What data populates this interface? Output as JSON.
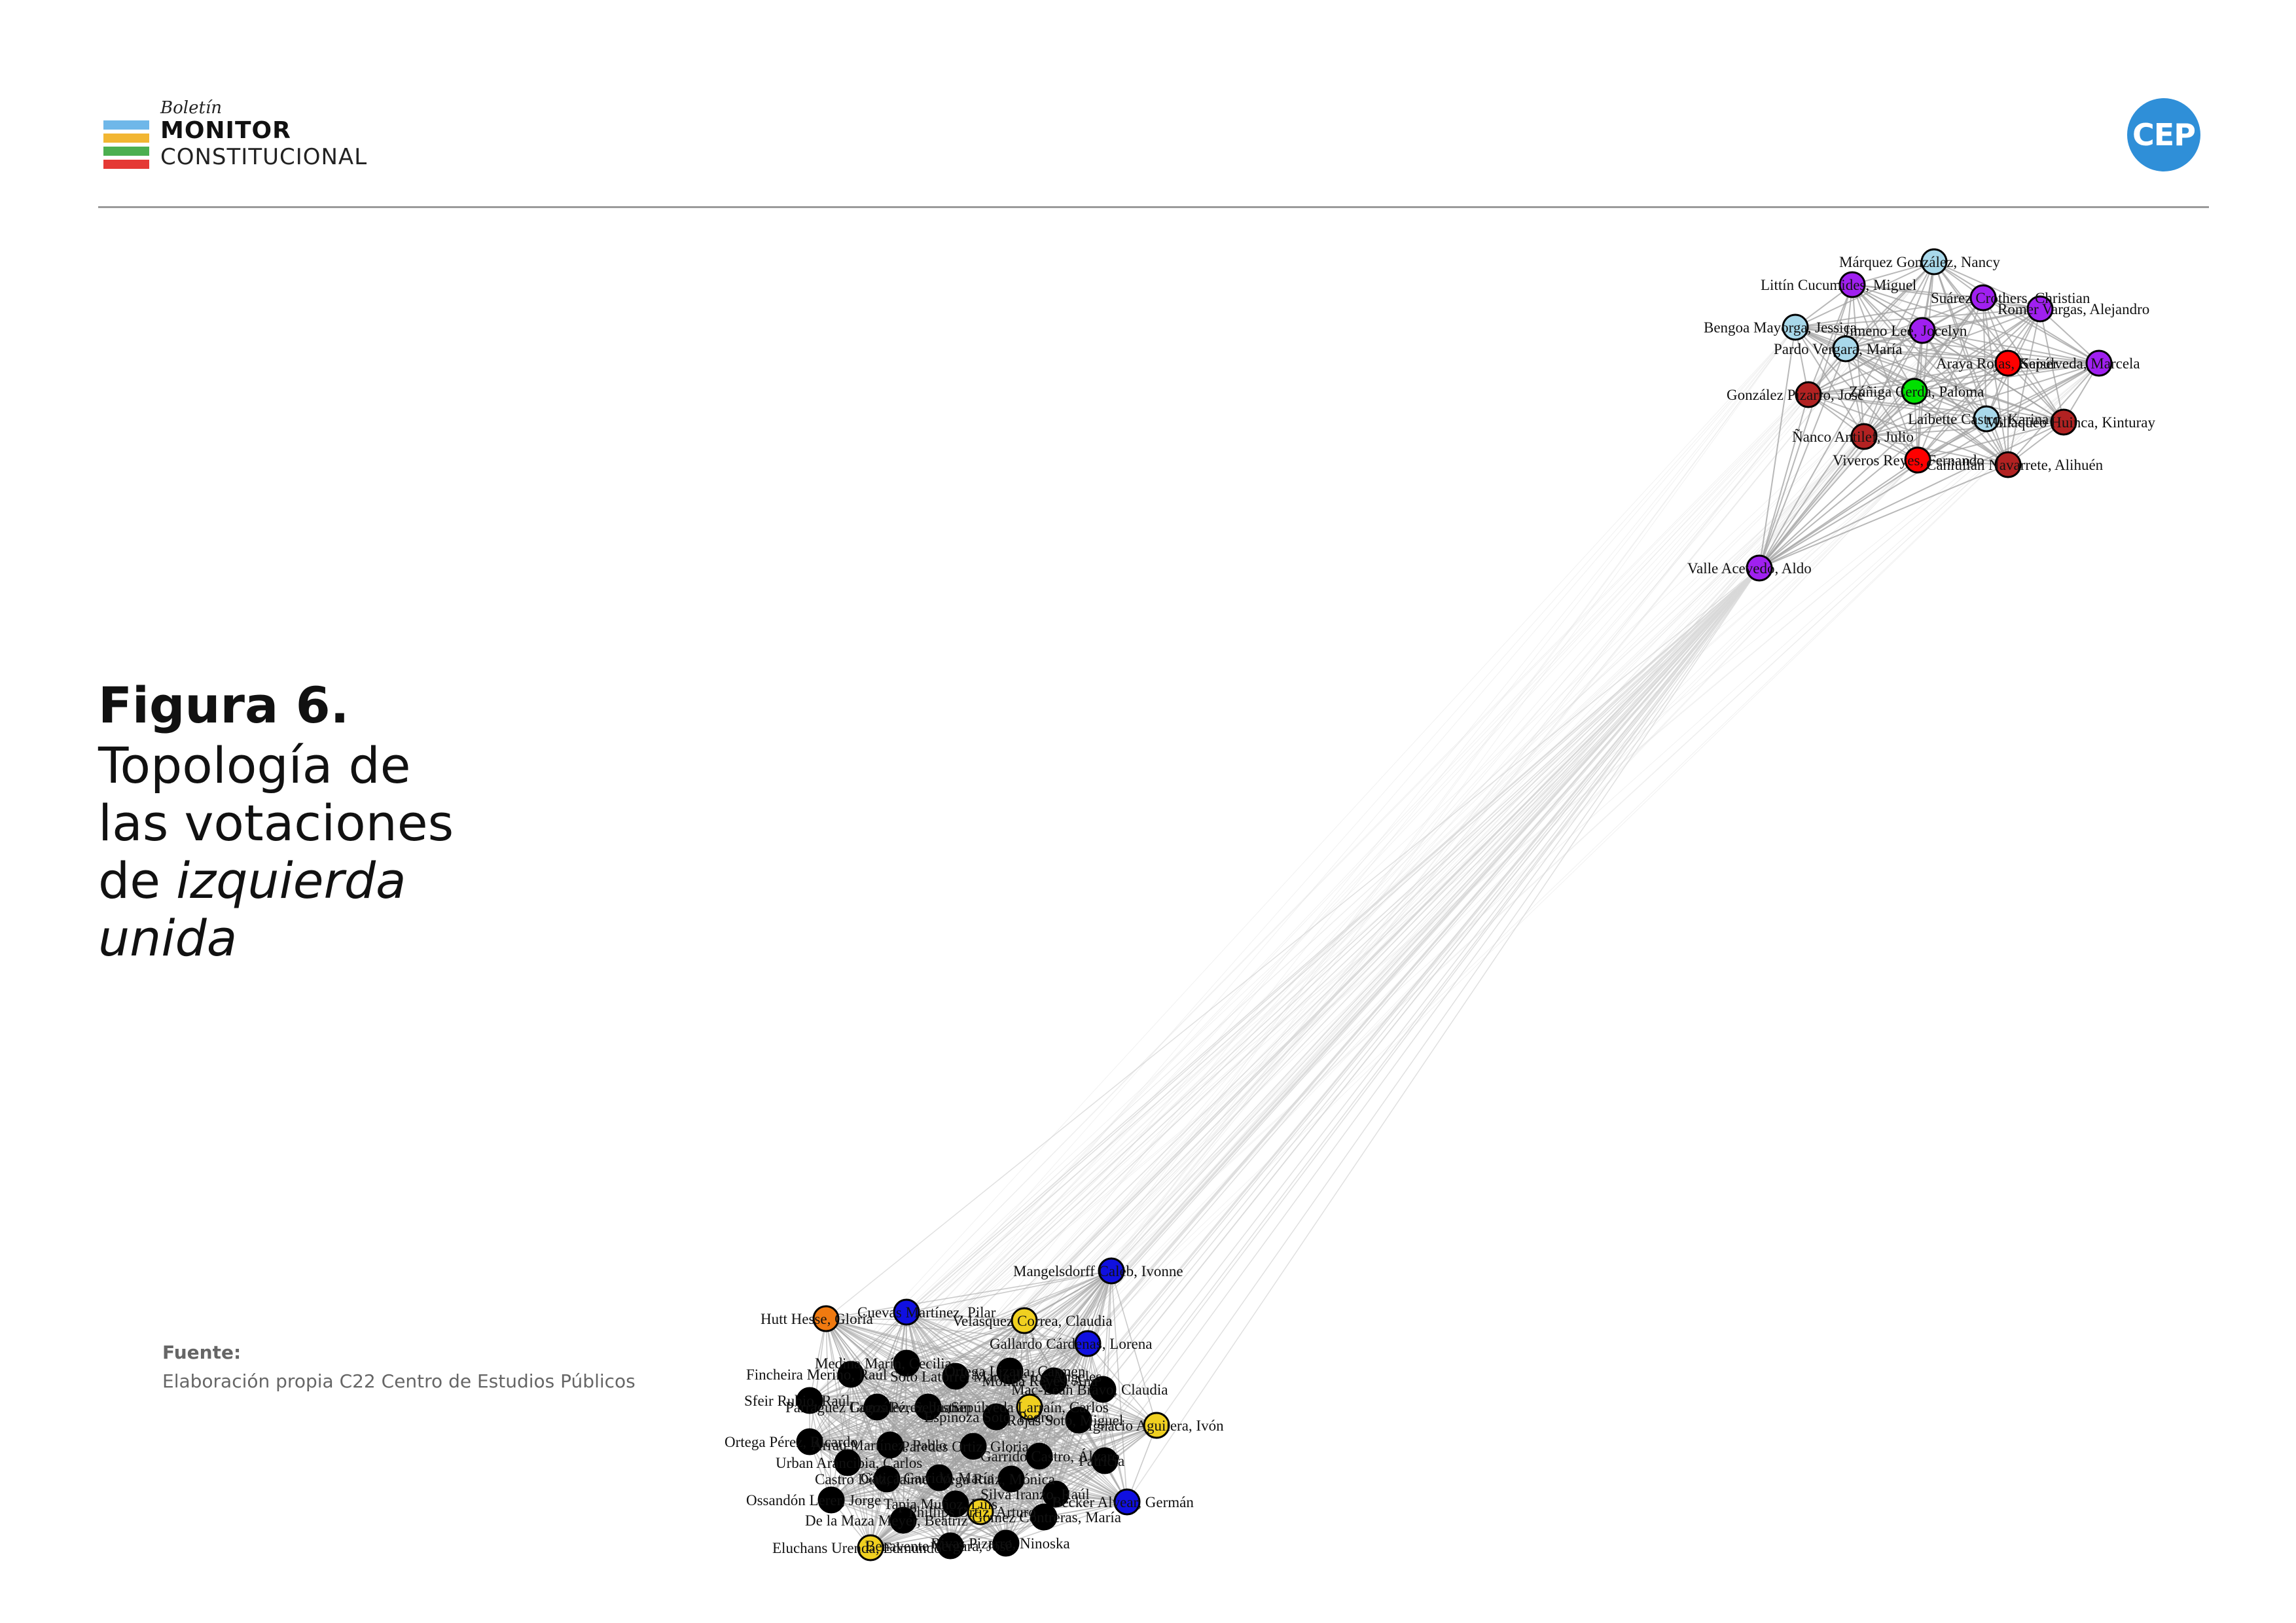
{
  "header": {
    "logo_small": "Boletín",
    "logo_main": "MONITOR",
    "logo_sub": "CONSTITUCIONAL",
    "logo_bar_colors": [
      "#6fb7e9",
      "#f2b632",
      "#4caf50",
      "#e53935"
    ],
    "cep_badge": "CEP",
    "cep_color": "#2f8fd8"
  },
  "figure": {
    "label": "Figura 6.",
    "title_line1": "Topología de",
    "title_line2": "las votaciones",
    "title_line3_prefix": "de ",
    "title_line3_italic": "izquierda",
    "title_line4_italic": "unida"
  },
  "source": {
    "label": "Fuente:",
    "text": "Elaboración propia C22 Centro de Estudios Públicos"
  },
  "colors": {
    "black": "#000000",
    "yellow": "#f0d020",
    "blue": "#1010e0",
    "orange": "#f07a10",
    "purple": "#a020f0",
    "lightblue": "#a8d8ea",
    "red": "#ff0000",
    "darkred": "#b22222",
    "green": "#00e000",
    "edge": "#a0a0a0",
    "bridge_edge": "#d8d8d8"
  },
  "nodes_top": [
    {
      "name": "Márquez González, Nancy",
      "color": "lightblue"
    },
    {
      "name": "Littín Cucumides, Miguel",
      "color": "purple"
    },
    {
      "name": "Suárez Crothers, Christian",
      "color": "purple"
    },
    {
      "name": "Romer Vargas, Alejandro",
      "color": "purple"
    },
    {
      "name": "Bengoa Mayorga, Jessica",
      "color": "lightblue"
    },
    {
      "name": "Jimeno Lee, Jocelyn",
      "color": "purple"
    },
    {
      "name": "Pardo Vergara, María",
      "color": "lightblue"
    },
    {
      "name": "Araya Rojas, Kaiser",
      "color": "red"
    },
    {
      "name": "Sepúlveda, Marcela",
      "color": "purple"
    },
    {
      "name": "González Pizarro, José",
      "color": "darkred"
    },
    {
      "name": "Zúñiga Cerda, Paloma",
      "color": "green"
    },
    {
      "name": "Laibette Castro, Karina",
      "color": "lightblue"
    },
    {
      "name": "Ñanco Antilef, Julio",
      "color": "darkred"
    },
    {
      "name": "Millaqueo Huinca, Kinturay",
      "color": "darkred"
    },
    {
      "name": "Viveros Reyes, Fernando",
      "color": "red"
    },
    {
      "name": "Caniullán Navarrete, Alihuén",
      "color": "darkred"
    },
    {
      "name": "Valle Acevedo, Aldo",
      "color": "purple"
    }
  ],
  "nodes_bottom": [
    {
      "name": "Mangelsdorff Caleb, Ivonne",
      "color": "blue"
    },
    {
      "name": "Hutt Hesse, Gloria",
      "color": "orange"
    },
    {
      "name": "Cuevas Martínez, Pilar",
      "color": "blue"
    },
    {
      "name": "Velásquez Correa, Claudia",
      "color": "yellow"
    },
    {
      "name": "Gallardo Cárdenas, Lorena",
      "color": "blue"
    },
    {
      "name": "Medina Marín, Cecilia",
      "color": "black"
    },
    {
      "name": "Fincheira Merino, Raúl",
      "color": "black"
    },
    {
      "name": "Soto Latorre, María de los Ángeles",
      "color": "black"
    },
    {
      "name": "Ortega Lizana, Carmen",
      "color": "black"
    },
    {
      "name": "Mac-Lean Bravo, Claudia",
      "color": "black"
    },
    {
      "name": "Sfeir Rubio, Raúl",
      "color": "black"
    },
    {
      "name": "Parraguez González, Sebastián",
      "color": "black"
    },
    {
      "name": "Sepúlveda Larraín, Carlos",
      "color": "yellow"
    },
    {
      "name": "Rojas Soto, Miguel",
      "color": "black"
    },
    {
      "name": "Ignacio Aguilera, Ivón",
      "color": "yellow"
    },
    {
      "name": "Ortega Pérez, Ricardo",
      "color": "black"
    },
    {
      "name": "Paredes Ortiz, Gloria",
      "color": "black"
    },
    {
      "name": "Urban Arancibia, Carlos",
      "color": "black"
    },
    {
      "name": "Garrido Castro, Álvaro",
      "color": "black"
    },
    {
      "name": "Patricia",
      "color": "black"
    },
    {
      "name": "Gatica Garrido, María",
      "color": "black"
    },
    {
      "name": "Ossandón Lerer, Jorge",
      "color": "black"
    },
    {
      "name": "Silva Iranzo, Raúl",
      "color": "black"
    },
    {
      "name": "Becker Alvear, Germán",
      "color": "blue"
    },
    {
      "name": "Phillips Ortiz, Arturo",
      "color": "yellow"
    },
    {
      "name": "De la Maza Meyer, Beatriz",
      "color": "black"
    },
    {
      "name": "Eluchans Urenda, Edmundo",
      "color": "yellow"
    },
    {
      "name": "Rivas Pizarro, Ninoska",
      "color": "black"
    },
    {
      "name": "Benavente Vergara, José",
      "color": "black"
    },
    {
      "name": "Gómez Contreras, María",
      "color": "black"
    },
    {
      "name": "Arrau Martínez, Pablo",
      "color": "black"
    },
    {
      "name": "Lagos Pérez, Juan",
      "color": "black"
    },
    {
      "name": "Espinoza Soto, Pedro",
      "color": "black"
    },
    {
      "name": "Molina Reyes, Ana",
      "color": "black"
    },
    {
      "name": "Tapia Muñoz, Luis",
      "color": "black"
    },
    {
      "name": "Castro Díaz, Jaime",
      "color": "black"
    },
    {
      "name": "Vega Ruiz, Mónica",
      "color": "black"
    }
  ]
}
